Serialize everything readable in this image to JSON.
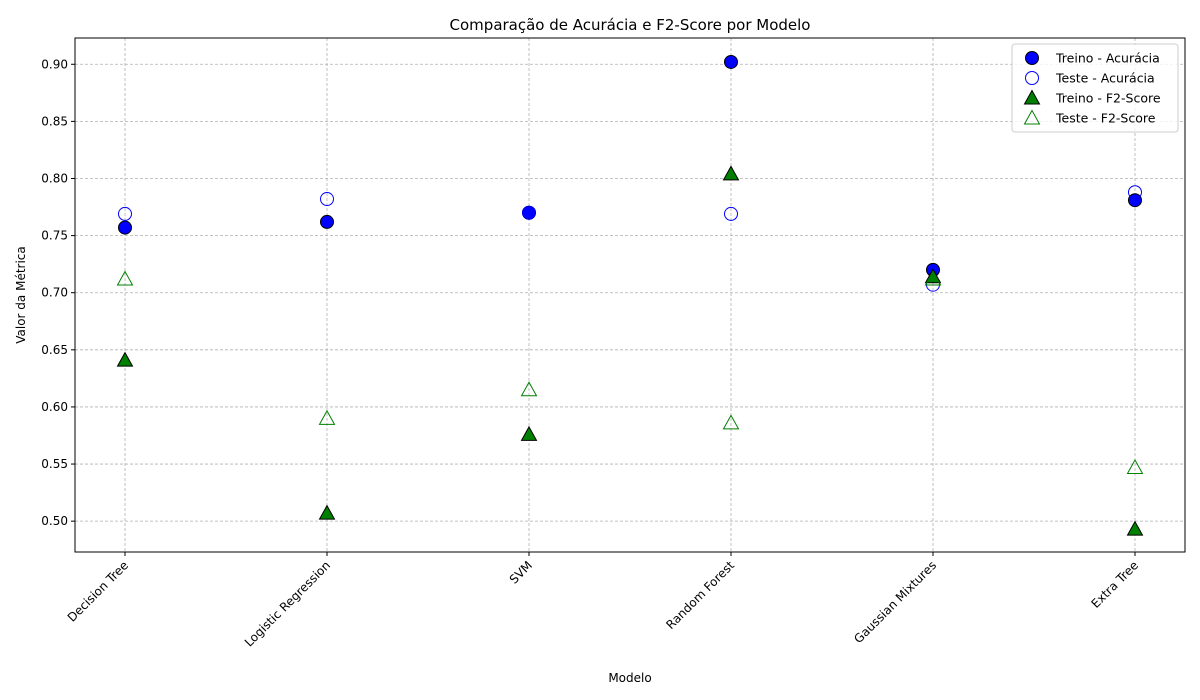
{
  "chart_data": {
    "type": "scatter",
    "title": "Comparação de Acurácia e F2-Score por Modelo",
    "xlabel": "Modelo",
    "ylabel": "Valor da Métrica",
    "categories": [
      "Decision Tree",
      "Logistic Regression",
      "SVM",
      "Random Forest",
      "Gaussian Mixtures",
      "Extra Tree"
    ],
    "ylim": [
      0.473,
      0.923
    ],
    "yticks": [
      "0.50",
      "0.55",
      "0.60",
      "0.65",
      "0.70",
      "0.75",
      "0.80",
      "0.85",
      "0.90"
    ],
    "grid": true,
    "legend_position": "top-right",
    "series": [
      {
        "name": "Treino - Acurácia",
        "marker": "circle",
        "filled": true,
        "fill": "#0000ff",
        "edge": "#000000",
        "values": [
          0.757,
          0.762,
          0.77,
          0.902,
          0.72,
          0.781
        ]
      },
      {
        "name": "Teste - Acurácia",
        "marker": "circle",
        "filled": false,
        "fill": "none",
        "edge": "#0000ff",
        "values": [
          0.769,
          0.782,
          0.77,
          0.769,
          0.707,
          0.788
        ]
      },
      {
        "name": "Treino - F2-Score",
        "marker": "triangle",
        "filled": true,
        "fill": "#008000",
        "edge": "#000000",
        "values": [
          0.641,
          0.507,
          0.576,
          0.804,
          0.714,
          0.493
        ]
      },
      {
        "name": "Teste - F2-Score",
        "marker": "triangle",
        "filled": false,
        "fill": "none",
        "edge": "#008000",
        "values": [
          0.712,
          0.59,
          0.615,
          0.586,
          0.712,
          0.547
        ]
      }
    ]
  }
}
